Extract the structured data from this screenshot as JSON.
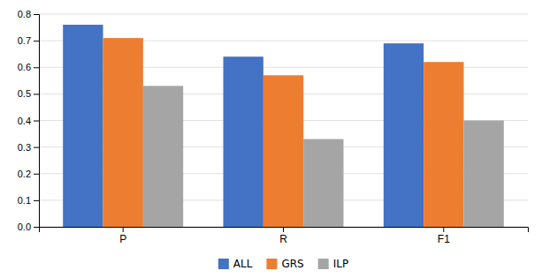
{
  "chart_data": {
    "type": "bar",
    "categories": [
      "P",
      "R",
      "F1"
    ],
    "series": [
      {
        "name": "ALL",
        "color": "#4472C4",
        "values": [
          0.76,
          0.64,
          0.69
        ]
      },
      {
        "name": "GRS",
        "color": "#ED7D31",
        "values": [
          0.71,
          0.57,
          0.62
        ]
      },
      {
        "name": "ILP",
        "color": "#A5A5A5",
        "values": [
          0.53,
          0.33,
          0.4
        ]
      }
    ],
    "ylim": [
      0,
      0.8
    ],
    "yticks": [
      {
        "value": 0,
        "label": "0.0"
      },
      0.1,
      0.2,
      0.3,
      0.4,
      0.5,
      0.6,
      0.7,
      0.8
    ],
    "grid": true,
    "legend": "bottom"
  }
}
